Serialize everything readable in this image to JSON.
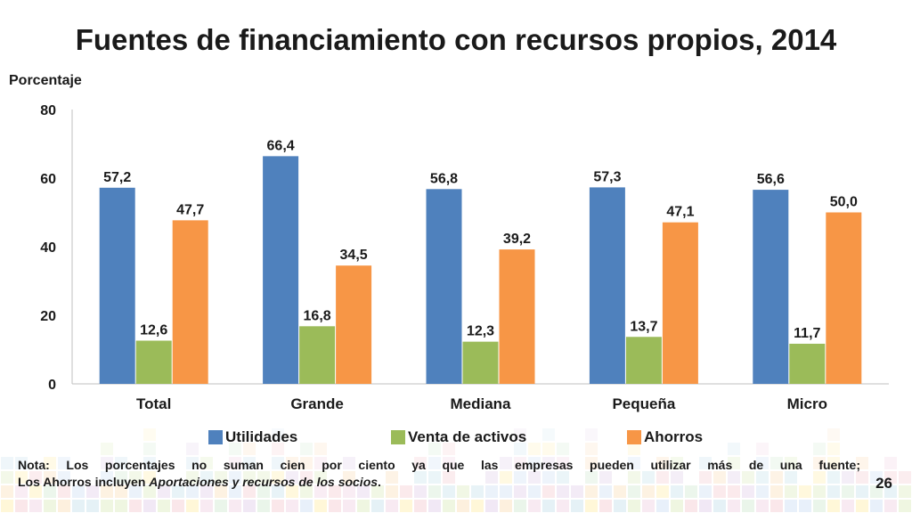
{
  "title": "Fuentes de financiamiento con recursos propios, 2014",
  "page_number": "26",
  "note": {
    "line1": "Nota: Los porcentajes no suman cien por ciento ya que las empresas pueden utilizar más de una fuente;",
    "line2_prefix": "Los Ahorros incluyen ",
    "line2_italic": "Aportaciones y recursos de los socios",
    "line2_suffix": "."
  },
  "chart_data": {
    "type": "bar",
    "title": "Fuentes de financiamiento con recursos propios, 2014",
    "ylabel": "Porcentaje",
    "xlabel": "",
    "ylim": [
      0,
      80
    ],
    "yticks": [
      0,
      20,
      40,
      60,
      80
    ],
    "grid": false,
    "legend_position": "bottom",
    "categories": [
      "Total",
      "Grande",
      "Mediana",
      "Pequeña",
      "Micro"
    ],
    "series": [
      {
        "name": "Utilidades",
        "color": "#4f81bd",
        "values": [
          57.2,
          66.4,
          56.8,
          57.3,
          56.6
        ],
        "labels": [
          "57,2",
          "66,4",
          "56,8",
          "57,3",
          "56,6"
        ]
      },
      {
        "name": "Venta de activos",
        "color": "#9bbb59",
        "values": [
          12.6,
          16.8,
          12.3,
          13.7,
          11.7
        ],
        "labels": [
          "12,6",
          "16,8",
          "12,3",
          "13,7",
          "11,7"
        ]
      },
      {
        "name": "Ahorros",
        "color": "#f79646",
        "values": [
          47.7,
          34.5,
          39.2,
          47.1,
          50.0
        ],
        "labels": [
          "47,7",
          "34,5",
          "39,2",
          "47,1",
          "50,0"
        ]
      }
    ]
  }
}
